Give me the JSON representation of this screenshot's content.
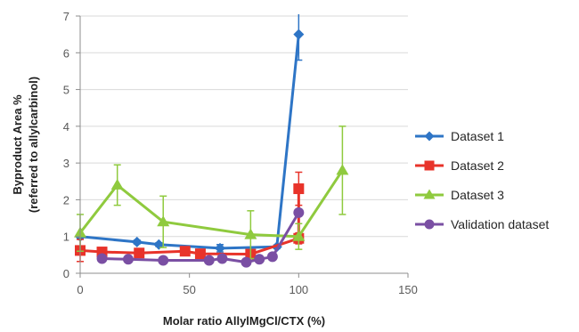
{
  "chart_data": {
    "type": "line",
    "xlabel": "Molar ratio AllylMgCl/CTX (%)",
    "ylabel": [
      "Byproduct Area %",
      "(referred to allylcarbinol)"
    ],
    "xlim": [
      0,
      150
    ],
    "ylim": [
      0,
      7
    ],
    "xticks": [
      0,
      50,
      100,
      150
    ],
    "yticks": [
      0,
      1,
      2,
      3,
      4,
      5,
      6,
      7
    ],
    "grid": "horizontal",
    "legend_position": "right",
    "series": [
      {
        "name": "Dataset 1",
        "color": "#2e75c6",
        "marker": "diamond",
        "x": [
          0,
          26,
          36,
          64,
          90,
          100
        ],
        "y": [
          1.0,
          0.85,
          0.78,
          0.68,
          0.72,
          6.5
        ],
        "err": [
          0.05,
          0.05,
          0.05,
          0.1,
          0.05,
          0.7
        ]
      },
      {
        "name": "Dataset 2",
        "color": "#e8332a",
        "marker": "square",
        "x": [
          0,
          10,
          27,
          48,
          55,
          78,
          100,
          100
        ],
        "y": [
          0.62,
          0.58,
          0.55,
          0.6,
          0.53,
          0.52,
          0.95,
          2.3
        ],
        "err": [
          0.3,
          0.05,
          0.05,
          0.05,
          0.05,
          0.05,
          0.15,
          0.45
        ]
      },
      {
        "name": "Dataset 3",
        "color": "#8fca3e",
        "marker": "triangle",
        "x": [
          0,
          17,
          38,
          78,
          100,
          120
        ],
        "y": [
          1.1,
          2.4,
          1.4,
          1.05,
          1.0,
          2.8
        ],
        "err": [
          0.5,
          0.55,
          0.7,
          0.65,
          0.35,
          1.2
        ]
      },
      {
        "name": "Validation dataset",
        "color": "#7a4fa3",
        "marker": "circle",
        "x": [
          10,
          22,
          38,
          59,
          65,
          76,
          82,
          88,
          100
        ],
        "y": [
          0.4,
          0.38,
          0.35,
          0.35,
          0.4,
          0.3,
          0.38,
          0.45,
          1.65
        ],
        "err": [
          0,
          0,
          0,
          0,
          0,
          0,
          0,
          0,
          0
        ]
      }
    ]
  }
}
